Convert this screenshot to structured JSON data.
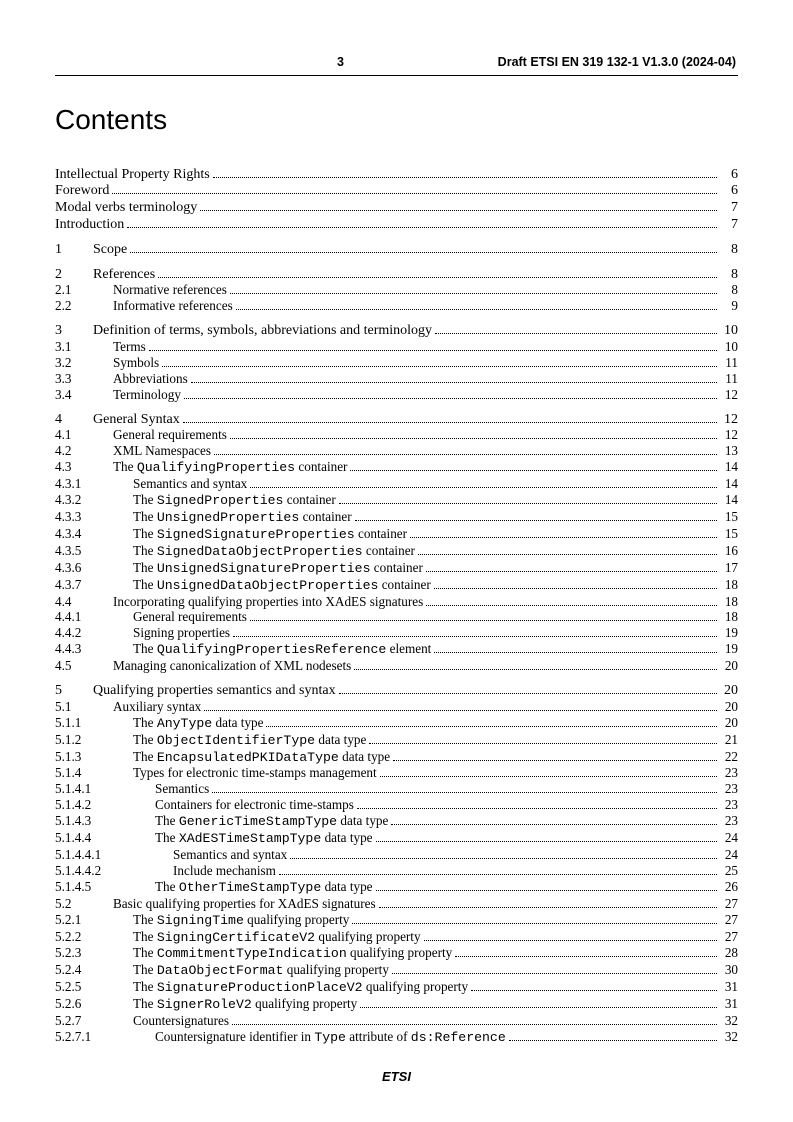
{
  "header": {
    "page_number": "3",
    "doc_ref": "Draft ETSI EN 319 132-1 V1.3.0 (2024-04)"
  },
  "title": "Contents",
  "footer": "ETSI",
  "toc": [
    {
      "block": [
        {
          "num": "",
          "label": "Intellectual Property Rights",
          "page": "6",
          "level": 0,
          "front": true
        },
        {
          "num": "",
          "label": "Foreword",
          "page": "6",
          "level": 0,
          "front": true
        },
        {
          "num": "",
          "label": "Modal verbs terminology",
          "page": "7",
          "level": 0,
          "front": true
        },
        {
          "num": "",
          "label": "Introduction",
          "page": "7",
          "level": 0,
          "front": true
        }
      ]
    },
    {
      "block": [
        {
          "num": "1",
          "label": "Scope",
          "page": "8",
          "level": 0
        }
      ]
    },
    {
      "block": [
        {
          "num": "2",
          "label": "References",
          "page": "8",
          "level": 0
        },
        {
          "num": "2.1",
          "label": "Normative references",
          "page": "8",
          "level": 1,
          "indent": 1
        },
        {
          "num": "2.2",
          "label": "Informative references",
          "page": "9",
          "level": 1,
          "indent": 1
        }
      ]
    },
    {
      "block": [
        {
          "num": "3",
          "label": "Definition of terms, symbols, abbreviations and terminology",
          "page": "10",
          "level": 0
        },
        {
          "num": "3.1",
          "label": "Terms",
          "page": "10",
          "level": 1,
          "indent": 1
        },
        {
          "num": "3.2",
          "label": "Symbols",
          "page": "11",
          "level": 1,
          "indent": 1
        },
        {
          "num": "3.3",
          "label": "Abbreviations",
          "page": "11",
          "level": 1,
          "indent": 1
        },
        {
          "num": "3.4",
          "label": "Terminology",
          "page": "12",
          "level": 1,
          "indent": 1
        }
      ]
    },
    {
      "block": [
        {
          "num": "4",
          "label": "General Syntax",
          "page": "12",
          "level": 0
        },
        {
          "num": "4.1",
          "label": "General requirements",
          "page": "12",
          "level": 1,
          "indent": 1
        },
        {
          "num": "4.2",
          "label": "XML Namespaces",
          "page": "13",
          "level": 1,
          "indent": 1
        },
        {
          "num": "4.3",
          "parts": [
            {
              "t": "The "
            },
            {
              "t": "QualifyingProperties",
              "code": true
            },
            {
              "t": " container"
            }
          ],
          "page": "14",
          "level": 1,
          "indent": 1
        },
        {
          "num": "4.3.1",
          "label": "Semantics and syntax",
          "page": "14",
          "level": 1,
          "indent": 2
        },
        {
          "num": "4.3.2",
          "parts": [
            {
              "t": "The "
            },
            {
              "t": "SignedProperties",
              "code": true
            },
            {
              "t": " container"
            }
          ],
          "page": "14",
          "level": 1,
          "indent": 2
        },
        {
          "num": "4.3.3",
          "parts": [
            {
              "t": "The "
            },
            {
              "t": "UnsignedProperties",
              "code": true
            },
            {
              "t": " container"
            }
          ],
          "page": "15",
          "level": 1,
          "indent": 2
        },
        {
          "num": "4.3.4",
          "parts": [
            {
              "t": "The "
            },
            {
              "t": "SignedSignatureProperties",
              "code": true
            },
            {
              "t": " container"
            }
          ],
          "page": "15",
          "level": 1,
          "indent": 2
        },
        {
          "num": "4.3.5",
          "parts": [
            {
              "t": "The "
            },
            {
              "t": "SignedDataObjectProperties",
              "code": true
            },
            {
              "t": " container"
            }
          ],
          "page": "16",
          "level": 1,
          "indent": 2
        },
        {
          "num": "4.3.6",
          "parts": [
            {
              "t": "The "
            },
            {
              "t": "UnsignedSignatureProperties",
              "code": true
            },
            {
              "t": " container"
            }
          ],
          "page": "17",
          "level": 1,
          "indent": 2
        },
        {
          "num": "4.3.7",
          "parts": [
            {
              "t": "The "
            },
            {
              "t": "UnsignedDataObjectProperties",
              "code": true
            },
            {
              "t": " container"
            }
          ],
          "page": "18",
          "level": 1,
          "indent": 2
        },
        {
          "num": "4.4",
          "label": "Incorporating qualifying properties into XAdES signatures",
          "page": "18",
          "level": 1,
          "indent": 1
        },
        {
          "num": "4.4.1",
          "label": "General requirements",
          "page": "18",
          "level": 1,
          "indent": 2
        },
        {
          "num": "4.4.2",
          "label": "Signing properties",
          "page": "19",
          "level": 1,
          "indent": 2
        },
        {
          "num": "4.4.3",
          "parts": [
            {
              "t": "The "
            },
            {
              "t": "QualifyingPropertiesReference",
              "code": true
            },
            {
              "t": " element"
            }
          ],
          "page": "19",
          "level": 1,
          "indent": 2
        },
        {
          "num": "4.5",
          "label": "Managing canonicalization of XML nodesets",
          "page": "20",
          "level": 1,
          "indent": 1
        }
      ]
    },
    {
      "block": [
        {
          "num": "5",
          "label": "Qualifying properties semantics and syntax",
          "page": "20",
          "level": 0
        },
        {
          "num": "5.1",
          "label": "Auxiliary syntax",
          "page": "20",
          "level": 1,
          "indent": 1
        },
        {
          "num": "5.1.1",
          "parts": [
            {
              "t": "The "
            },
            {
              "t": "AnyType",
              "code": true
            },
            {
              "t": " data type"
            }
          ],
          "page": "20",
          "level": 1,
          "indent": 2
        },
        {
          "num": "5.1.2",
          "parts": [
            {
              "t": "The "
            },
            {
              "t": "ObjectIdentifierType",
              "code": true
            },
            {
              "t": " data type"
            }
          ],
          "page": "21",
          "level": 1,
          "indent": 2
        },
        {
          "num": "5.1.3",
          "parts": [
            {
              "t": "The "
            },
            {
              "t": "EncapsulatedPKIDataType",
              "code": true
            },
            {
              "t": " data type"
            }
          ],
          "page": "22",
          "level": 1,
          "indent": 2
        },
        {
          "num": "5.1.4",
          "label": "Types for electronic time-stamps management",
          "page": "23",
          "level": 1,
          "indent": 2
        },
        {
          "num": "5.1.4.1",
          "label": "Semantics",
          "page": "23",
          "level": 1,
          "indent": 3
        },
        {
          "num": "5.1.4.2",
          "label": "Containers for electronic time-stamps",
          "page": "23",
          "level": 1,
          "indent": 3
        },
        {
          "num": "5.1.4.3",
          "parts": [
            {
              "t": "The "
            },
            {
              "t": "GenericTimeStampType",
              "code": true
            },
            {
              "t": " data type"
            }
          ],
          "page": "23",
          "level": 1,
          "indent": 3
        },
        {
          "num": "5.1.4.4",
          "parts": [
            {
              "t": "The "
            },
            {
              "t": "XAdESTimeStampType",
              "code": true
            },
            {
              "t": " data type"
            }
          ],
          "page": "24",
          "level": 1,
          "indent": 3
        },
        {
          "num": "5.1.4.4.1",
          "label": "Semantics and syntax",
          "page": "24",
          "level": 1,
          "indent": 4
        },
        {
          "num": "5.1.4.4.2",
          "label": "Include mechanism",
          "page": "25",
          "level": 1,
          "indent": 4
        },
        {
          "num": "5.1.4.5",
          "parts": [
            {
              "t": "The "
            },
            {
              "t": "OtherTimeStampType",
              "code": true
            },
            {
              "t": " data type"
            }
          ],
          "page": "26",
          "level": 1,
          "indent": 3
        },
        {
          "num": "5.2",
          "label": "Basic qualifying properties for XAdES signatures",
          "page": "27",
          "level": 1,
          "indent": 1
        },
        {
          "num": "5.2.1",
          "parts": [
            {
              "t": "The "
            },
            {
              "t": "SigningTime",
              "code": true
            },
            {
              "t": " qualifying property"
            }
          ],
          "page": "27",
          "level": 1,
          "indent": 2
        },
        {
          "num": "5.2.2",
          "parts": [
            {
              "t": "The "
            },
            {
              "t": "SigningCertificateV2",
              "code": true
            },
            {
              "t": " qualifying property"
            }
          ],
          "page": "27",
          "level": 1,
          "indent": 2
        },
        {
          "num": "5.2.3",
          "parts": [
            {
              "t": "The "
            },
            {
              "t": "CommitmentTypeIndication",
              "code": true
            },
            {
              "t": " qualifying property"
            }
          ],
          "page": "28",
          "level": 1,
          "indent": 2
        },
        {
          "num": "5.2.4",
          "parts": [
            {
              "t": "The "
            },
            {
              "t": "DataObjectFormat",
              "code": true
            },
            {
              "t": " qualifying property"
            }
          ],
          "page": "30",
          "level": 1,
          "indent": 2
        },
        {
          "num": "5.2.5",
          "parts": [
            {
              "t": "The "
            },
            {
              "t": "SignatureProductionPlaceV2",
              "code": true
            },
            {
              "t": " qualifying property"
            }
          ],
          "page": "31",
          "level": 1,
          "indent": 2
        },
        {
          "num": "5.2.6",
          "parts": [
            {
              "t": "The "
            },
            {
              "t": "SignerRoleV2",
              "code": true
            },
            {
              "t": " qualifying property"
            }
          ],
          "page": "31",
          "level": 1,
          "indent": 2
        },
        {
          "num": "5.2.7",
          "label": "Countersignatures",
          "page": "32",
          "level": 1,
          "indent": 2
        },
        {
          "num": "5.2.7.1",
          "parts": [
            {
              "t": "Countersignature identifier in "
            },
            {
              "t": "Type",
              "code": true
            },
            {
              "t": " attribute of "
            },
            {
              "t": "ds:Reference",
              "code": true
            }
          ],
          "page": "32",
          "level": 1,
          "indent": 3
        }
      ]
    }
  ]
}
